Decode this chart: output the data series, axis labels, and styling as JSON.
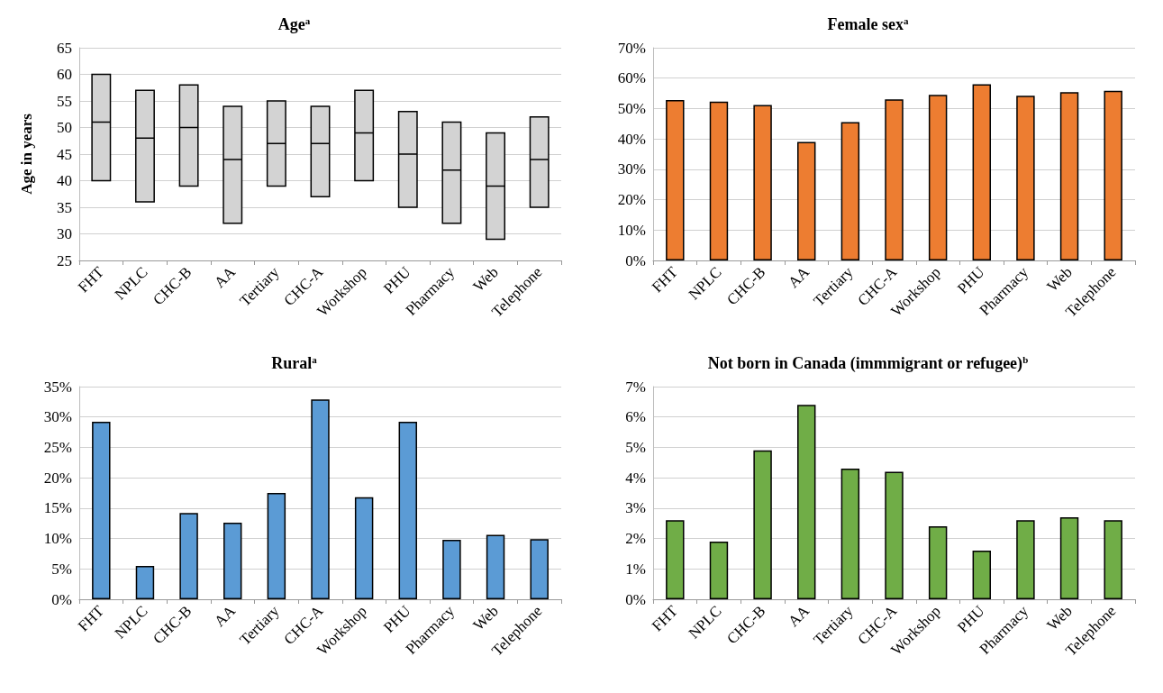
{
  "chart_data": [
    {
      "type": "box",
      "title": "Age$^{a}$",
      "ylabel": "Age in years",
      "categories": [
        "FHT",
        "NPLC",
        "CHC-B",
        "AA",
        "Tertiary",
        "CHC-A",
        "Workshop",
        "PHU",
        "Pharmacy",
        "Web",
        "Telephone"
      ],
      "color": "#d3d3d3",
      "boxes": [
        {
          "low": 40,
          "q1": 40,
          "median": 51,
          "q3": 60,
          "high": 60
        },
        {
          "low": 36,
          "q1": 36,
          "median": 48,
          "q3": 57,
          "high": 57
        },
        {
          "low": 39,
          "q1": 39,
          "median": 50,
          "q3": 58,
          "high": 58
        },
        {
          "low": 32,
          "q1": 32,
          "median": 44,
          "q3": 54,
          "high": 54
        },
        {
          "low": 39,
          "q1": 39,
          "median": 47,
          "q3": 55,
          "high": 55
        },
        {
          "low": 37,
          "q1": 37,
          "median": 47,
          "q3": 54,
          "high": 54
        },
        {
          "low": 40,
          "q1": 40,
          "median": 49,
          "q3": 57,
          "high": 57
        },
        {
          "low": 35,
          "q1": 35,
          "median": 45,
          "q3": 53,
          "high": 53
        },
        {
          "low": 32,
          "q1": 32,
          "median": 42,
          "q3": 51,
          "high": 51
        },
        {
          "low": 29,
          "q1": 29,
          "median": 39,
          "q3": 49,
          "high": 49
        },
        {
          "low": 35,
          "q1": 35,
          "median": 44,
          "q3": 52,
          "high": 52
        }
      ],
      "ylim": [
        25,
        65
      ],
      "yticks": [
        25,
        30,
        35,
        40,
        45,
        50,
        55,
        60,
        65
      ],
      "grid": "y"
    },
    {
      "type": "bar",
      "title": "Female sex$^{a}$",
      "categories": [
        "FHT",
        "NPLC",
        "CHC-B",
        "AA",
        "Tertiary",
        "CHC-A",
        "Workshop",
        "PHU",
        "Pharmacy",
        "Web",
        "Telephone"
      ],
      "color": "#ed7d31",
      "values": [
        52.8,
        52.3,
        51.2,
        39,
        45.5,
        53,
        54.5,
        58,
        54.2,
        55.4,
        55.8
      ],
      "ylim": [
        0,
        70
      ],
      "yticks": [
        {
          "value": 0,
          "label": "0%"
        },
        {
          "value": 10,
          "label": "10%"
        },
        {
          "value": 20,
          "label": "20%"
        },
        {
          "value": 30,
          "label": "30%"
        },
        {
          "value": 40,
          "label": "40%"
        },
        {
          "value": 50,
          "label": "50%"
        },
        {
          "value": 60,
          "label": "60%"
        },
        {
          "value": 70,
          "label": "70%"
        }
      ],
      "grid": "y"
    },
    {
      "type": "bar",
      "title": "Rural$^{a}$",
      "categories": [
        "FHT",
        "NPLC",
        "CHC-B",
        "AA",
        "Tertiary",
        "CHC-A",
        "Workshop",
        "PHU",
        "Pharmacy",
        "Web",
        "Telephone"
      ],
      "color": "#5b9bd5",
      "values": [
        29.2,
        5.5,
        14.2,
        12.6,
        17.5,
        32.9,
        16.8,
        29.2,
        9.8,
        10.6,
        9.9
      ],
      "ylim": [
        0,
        35
      ],
      "yticks": [
        {
          "value": 0,
          "label": "0%"
        },
        {
          "value": 5,
          "label": "5%"
        },
        {
          "value": 10,
          "label": "10%"
        },
        {
          "value": 15,
          "label": "15%"
        },
        {
          "value": 20,
          "label": "20%"
        },
        {
          "value": 25,
          "label": "25%"
        },
        {
          "value": 30,
          "label": "30%"
        },
        {
          "value": 35,
          "label": "35%"
        }
      ],
      "grid": "y"
    },
    {
      "type": "bar",
      "title": "Not born in Canada (immmigrant or refugee)$^{b}$",
      "categories": [
        "FHT",
        "NPLC",
        "CHC-B",
        "AA",
        "Tertiary",
        "CHC-A",
        "Workshop",
        "PHU",
        "Pharmacy",
        "Web",
        "Telephone"
      ],
      "color": "#70ad47",
      "values": [
        2.6,
        1.9,
        4.9,
        6.4,
        4.3,
        4.2,
        2.4,
        1.6,
        2.6,
        2.7,
        2.6
      ],
      "ylim": [
        0,
        7
      ],
      "yticks": [
        {
          "value": 0,
          "label": "0%"
        },
        {
          "value": 1,
          "label": "1%"
        },
        {
          "value": 2,
          "label": "2%"
        },
        {
          "value": 3,
          "label": "3%"
        },
        {
          "value": 4,
          "label": "4%"
        },
        {
          "value": 5,
          "label": "5%"
        },
        {
          "value": 6,
          "label": "6%"
        },
        {
          "value": 7,
          "label": "7%"
        }
      ],
      "grid": "y"
    }
  ]
}
